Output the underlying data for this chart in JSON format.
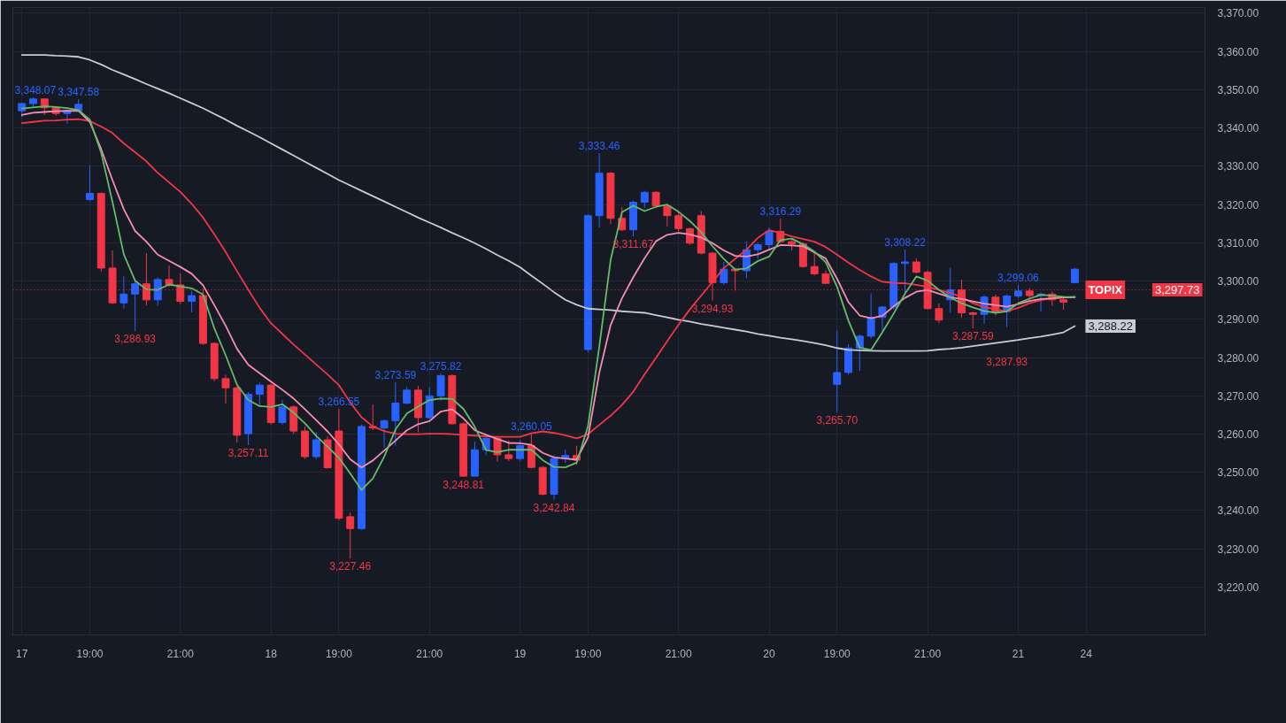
{
  "chart_data": {
    "type": "candlestick",
    "ylim": [
      3207.5,
      3371.5
    ],
    "grid": true,
    "categories": [
      "17",
      null,
      null,
      null,
      null,
      null,
      "19:00",
      null,
      null,
      null,
      null,
      null,
      null,
      null,
      "21:00",
      null,
      null,
      null,
      null,
      null,
      null,
      null,
      "18",
      null,
      null,
      null,
      null,
      null,
      "19:00",
      null,
      null,
      null,
      null,
      null,
      null,
      null,
      "21:00",
      null,
      null,
      null,
      null,
      null,
      null,
      null,
      "19",
      null,
      null,
      null,
      null,
      null,
      "19:00",
      null,
      null,
      null,
      null,
      null,
      null,
      null,
      "21:00",
      null,
      null,
      null,
      null,
      null,
      null,
      null,
      "20",
      null,
      null,
      null,
      null,
      null,
      "19:00",
      null,
      null,
      null,
      null,
      null,
      null,
      null,
      "21:00",
      null,
      null,
      null,
      null,
      null,
      null,
      null,
      "21",
      null,
      null,
      null,
      null,
      null,
      "24",
      null,
      null,
      null,
      null,
      null,
      null,
      null,
      null,
      null,
      null
    ],
    "yticks": [
      {
        "value": 3220,
        "label": "3,220.00"
      },
      {
        "value": 3230,
        "label": "3,230.00"
      },
      {
        "value": 3240,
        "label": "3,240.00"
      },
      {
        "value": 3250,
        "label": "3,250.00"
      },
      {
        "value": 3260,
        "label": "3,260.00"
      },
      {
        "value": 3270,
        "label": "3,270.00"
      },
      {
        "value": 3280,
        "label": "3,280.00"
      },
      {
        "value": 3290,
        "label": "3,290.00"
      },
      {
        "value": 3300,
        "label": "3,300.00"
      },
      {
        "value": 3310,
        "label": "3,310.00"
      },
      {
        "value": 3320,
        "label": "3,320.00"
      },
      {
        "value": 3330,
        "label": "3,330.00"
      },
      {
        "value": 3340,
        "label": "3,340.00"
      },
      {
        "value": 3350,
        "label": "3,350.00"
      },
      {
        "value": 3360,
        "label": "3,360.00"
      },
      {
        "value": 3370,
        "label": "3,370.00"
      }
    ],
    "series": [
      {
        "type": "line",
        "color": "#c9ccd4",
        "values": [
          3359.1,
          3359.1,
          3359.1,
          3358.9,
          3358.8,
          3358.6,
          3357.8,
          3356.6,
          3355.2,
          3354.0,
          3352.8,
          3351.5,
          3350.3,
          3349.1,
          3347.8,
          3346.5,
          3345.2,
          3343.7,
          3342.2,
          3340.6,
          3339.1,
          3337.6,
          3336.0,
          3334.4,
          3332.8,
          3331.2,
          3329.6,
          3328.0,
          3326.4,
          3325.0,
          3323.6,
          3322.2,
          3320.8,
          3319.4,
          3318.0,
          3316.6,
          3315.3,
          3314.0,
          3312.6,
          3311.3,
          3309.9,
          3308.4,
          3306.8,
          3305.3,
          3303.6,
          3301.4,
          3299.3,
          3297.1,
          3295.1,
          3293.8,
          3292.8,
          3292.6,
          3292.4,
          3292.1,
          3291.9,
          3291.7,
          3291.1,
          3290.5,
          3289.9,
          3289.4,
          3288.8,
          3288.3,
          3287.8,
          3287.3,
          3286.8,
          3286.2,
          3285.7,
          3285.2,
          3284.8,
          3284.3,
          3283.8,
          3283.2,
          3282.5,
          3282.0,
          3281.9,
          3281.8,
          3281.7,
          3281.7,
          3281.7,
          3281.7,
          3281.8,
          3282.1,
          3282.3,
          3282.6,
          3283.0,
          3283.4,
          3283.8,
          3284.2,
          3284.6,
          3285.1,
          3285.5,
          3286.0,
          3286.6,
          3288.22,
          null,
          null,
          null,
          null,
          null,
          null,
          null,
          null,
          null,
          null,
          null
        ],
        "value_labels": [
          null,
          null,
          null,
          null,
          null,
          null,
          null,
          null,
          null,
          null,
          null,
          null,
          null,
          null,
          null,
          null,
          null,
          null,
          null,
          null,
          null,
          null,
          null,
          null,
          null,
          null,
          null,
          null,
          null,
          null,
          null,
          null,
          null,
          null,
          null,
          null,
          null,
          null,
          null,
          null,
          null,
          null,
          null,
          null,
          null,
          null,
          null,
          null,
          null,
          null,
          null,
          null,
          null,
          null,
          null,
          null,
          null,
          null,
          null,
          null,
          null,
          null,
          null,
          null,
          null,
          null,
          null,
          null,
          null,
          null,
          null,
          null,
          null,
          null,
          null,
          null,
          null,
          null,
          null,
          null,
          null,
          null,
          null,
          null,
          null,
          null,
          null,
          null,
          null,
          null,
          null,
          null,
          null,
          "3,288.22",
          null,
          null,
          null,
          null,
          null,
          null,
          null,
          null,
          null,
          null,
          null
        ]
      },
      {
        "type": "line",
        "color": "#f23645",
        "values": [
          3341.3,
          3341.6,
          3341.9,
          3342.0,
          3342.2,
          3342.3,
          3341.8,
          3340.4,
          3338.7,
          3336.0,
          3333.7,
          3331.3,
          3328.3,
          3325.8,
          3323.3,
          3320.2,
          3316.6,
          3312.2,
          3307.6,
          3302.6,
          3297.7,
          3293.0,
          3289.0,
          3286.2,
          3283.4,
          3280.8,
          3278.2,
          3275.6,
          3272.8,
          3268.3,
          3264.4,
          3262.0,
          3260.8,
          3260.1,
          3260.0,
          3260.0,
          3260.1,
          3260.1,
          3260.0,
          3259.8,
          3259.6,
          3259.4,
          3259.3,
          3259.3,
          3259.3,
          3260.2,
          3260.7,
          3260.3,
          3259.7,
          3258.9,
          3260.0,
          3262.4,
          3264.8,
          3267.6,
          3271.1,
          3275.6,
          3279.9,
          3284.3,
          3288.6,
          3292.6,
          3296.2,
          3299.8,
          3303.4,
          3305.8,
          3308.2,
          3311.3,
          3313.3,
          3312.6,
          3311.7,
          3311.0,
          3310.3,
          3308.9,
          3306.9,
          3304.8,
          3302.9,
          3301.2,
          3299.8,
          3299.5,
          3299.4,
          3299.0,
          3298.5,
          3297.7,
          3296.9,
          3295.9,
          3294.2,
          3293.2,
          3292.6,
          3292.1,
          3293.0,
          3294.2,
          3295.0,
          3295.5,
          3295.7,
          3295.8,
          null,
          null,
          null,
          null,
          null,
          null,
          null,
          null,
          null,
          null,
          null
        ]
      },
      {
        "type": "line",
        "color": "#f48fb1",
        "values": [
          3343.4,
          3344.0,
          3344.2,
          3344.4,
          3344.5,
          3344.5,
          3341.6,
          3334.5,
          3326.4,
          3318.8,
          3313.1,
          3310.3,
          3306.9,
          3305.3,
          3303.7,
          3301.9,
          3298.9,
          3293.7,
          3288.3,
          3282.3,
          3278.1,
          3275.9,
          3273.7,
          3271.6,
          3269.3,
          3266.5,
          3263.6,
          3260.7,
          3257.3,
          3253.4,
          3251.3,
          3253.1,
          3255.7,
          3258.3,
          3261.0,
          3262.6,
          3263.4,
          3265.9,
          3266.5,
          3264.1,
          3261.0,
          3259.8,
          3258.7,
          3257.7,
          3257.6,
          3257.2,
          3255.1,
          3253.9,
          3253.6,
          3253.3,
          3259.1,
          3276.0,
          3288.5,
          3295.5,
          3301.0,
          3306.0,
          3310.4,
          3312.1,
          3312.6,
          3312.2,
          3311.4,
          3309.9,
          3308.0,
          3306.6,
          3306.4,
          3307.0,
          3308.2,
          3309.4,
          3309.3,
          3309.1,
          3307.5,
          3305.9,
          3300.6,
          3294.5,
          3291.0,
          3290.3,
          3290.9,
          3293.4,
          3295.6,
          3297.2,
          3297.7,
          3296.7,
          3295.8,
          3295.3,
          3294.7,
          3294.1,
          3293.7,
          3293.3,
          3294.0,
          3294.8,
          3295.3,
          3295.5,
          3295.7,
          3295.8,
          null,
          null,
          null,
          null,
          null,
          null,
          null,
          null,
          null,
          null,
          null
        ]
      },
      {
        "type": "line",
        "color": "#66bb6a",
        "values": [
          3345.1,
          3345.4,
          3345.7,
          3345.5,
          3345.2,
          3344.7,
          3342.2,
          3333.6,
          3320.7,
          3307.0,
          3300.1,
          3297.8,
          3297.7,
          3299.1,
          3298.6,
          3298.1,
          3296.5,
          3287.6,
          3280.6,
          3272.9,
          3268.9,
          3267.3,
          3267.1,
          3267.8,
          3265.6,
          3262.8,
          3259.5,
          3256.7,
          3253.8,
          3249.7,
          3245.4,
          3248.4,
          3254.1,
          3261.2,
          3265.4,
          3267.2,
          3268.9,
          3269.3,
          3269.2,
          3266.6,
          3261.9,
          3255.8,
          3255.3,
          3255.9,
          3255.9,
          3255.9,
          3253.2,
          3251.4,
          3251.3,
          3252.5,
          3262.0,
          3282.9,
          3305.5,
          3318.0,
          3319.7,
          3318.3,
          3319.4,
          3320.0,
          3318.1,
          3315.7,
          3312.8,
          3309.1,
          3305.8,
          3303.0,
          3303.3,
          3305.2,
          3306.4,
          3310.7,
          3311.1,
          3309.6,
          3307.7,
          3304.9,
          3298.5,
          3289.7,
          3282.6,
          3282.0,
          3286.6,
          3291.5,
          3296.7,
          3301.2,
          3300.1,
          3297.7,
          3295.7,
          3294.2,
          3293.1,
          3292.2,
          3291.7,
          3292.1,
          3294.2,
          3295.4,
          3296.4,
          3296.2,
          3295.9,
          3295.8,
          null,
          null,
          null,
          null,
          null,
          null,
          null,
          null,
          null,
          null,
          null
        ]
      },
      {
        "name": "TOPIX",
        "ohlc": [
          [
            3344.5,
            3346.6,
            3342.9,
            3346.4
          ],
          [
            3346.4,
            3348.07,
            3345.2,
            3347.6
          ],
          [
            3347.6,
            3347.8,
            3343.4,
            3345.3
          ],
          [
            3345.3,
            3345.6,
            3343.2,
            3343.8
          ],
          [
            3343.8,
            3344.9,
            3341.1,
            3344.5
          ],
          [
            3344.5,
            3347.58,
            3344.2,
            3346.2
          ],
          [
            3321.3,
            3330.2,
            3321.0,
            3322.9
          ],
          [
            3322.9,
            3323.2,
            3302.5,
            3303.4
          ],
          [
            3303.4,
            3308.0,
            3294.0,
            3294.3
          ],
          [
            3294.3,
            3301.2,
            3292.8,
            3296.6
          ],
          [
            3296.6,
            3299.8,
            3286.93,
            3299.3
          ],
          [
            3299.3,
            3307.3,
            3293.6,
            3295.1
          ],
          [
            3295.1,
            3301.0,
            3293.5,
            3300.4
          ],
          [
            3300.4,
            3304.1,
            3298.5,
            3299.0
          ],
          [
            3299.0,
            3302.0,
            3294.0,
            3294.7
          ],
          [
            3294.7,
            3297.5,
            3291.8,
            3296.2
          ],
          [
            3296.2,
            3298.0,
            3283.3,
            3283.7
          ],
          [
            3283.7,
            3284.0,
            3273.8,
            3274.5
          ],
          [
            3274.5,
            3275.5,
            3268.0,
            3272.1
          ],
          [
            3272.1,
            3272.5,
            3257.8,
            3259.7
          ],
          [
            3260.1,
            3271.0,
            3257.11,
            3270.4
          ],
          [
            3270.4,
            3273.4,
            3267.5,
            3272.8
          ],
          [
            3272.8,
            3273.2,
            3262.5,
            3263.0
          ],
          [
            3263.0,
            3269.0,
            3262.5,
            3267.1
          ],
          [
            3267.1,
            3267.5,
            3260.0,
            3260.8
          ],
          [
            3260.8,
            3262.0,
            3253.5,
            3254.1
          ],
          [
            3254.1,
            3260.5,
            3253.5,
            3258.5
          ],
          [
            3258.5,
            3259.5,
            3251.0,
            3251.2
          ],
          [
            3260.8,
            3266.55,
            3237.5,
            3238.0
          ],
          [
            3238.4,
            3239.5,
            3227.46,
            3235.3
          ],
          [
            3235.3,
            3262.5,
            3235.0,
            3262.0
          ],
          [
            3262.0,
            3267.7,
            3261.0,
            3261.6
          ],
          [
            3261.6,
            3263.8,
            3256.5,
            3263.5
          ],
          [
            3263.5,
            3273.59,
            3257.0,
            3268.1
          ],
          [
            3268.1,
            3272.3,
            3267.8,
            3271.5
          ],
          [
            3271.5,
            3272.6,
            3260.5,
            3264.3
          ],
          [
            3264.3,
            3272.3,
            3263.8,
            3270.0
          ],
          [
            3270.0,
            3275.82,
            3268.8,
            3275.3
          ],
          [
            3275.3,
            3275.6,
            3262.5,
            3262.7
          ],
          [
            3262.7,
            3263.1,
            3248.81,
            3249.0
          ],
          [
            3249.0,
            3258.0,
            3248.9,
            3255.9
          ],
          [
            3255.9,
            3259.5,
            3254.5,
            3258.9
          ],
          [
            3258.9,
            3259.2,
            3252.8,
            3254.6
          ],
          [
            3254.6,
            3258.3,
            3252.9,
            3253.6
          ],
          [
            3253.6,
            3258.5,
            3253.0,
            3257.0
          ],
          [
            3257.0,
            3260.05,
            3251.0,
            3251.3
          ],
          [
            3251.3,
            3251.6,
            3244.0,
            3244.3
          ],
          [
            3244.3,
            3254.5,
            3242.84,
            3253.6
          ],
          [
            3253.6,
            3256.0,
            3252.5,
            3254.4
          ],
          [
            3254.4,
            3257.0,
            3252.0,
            3253.2
          ],
          [
            3282.1,
            3317.5,
            3281.4,
            3317.1
          ],
          [
            3317.1,
            3333.46,
            3314.0,
            3328.2
          ],
          [
            3328.2,
            3328.5,
            3314.9,
            3316.4
          ],
          [
            3316.4,
            3319.3,
            3313.0,
            3313.4
          ],
          [
            3313.4,
            3321.0,
            3311.67,
            3320.6
          ],
          [
            3320.6,
            3323.6,
            3319.0,
            3323.2
          ],
          [
            3323.2,
            3323.5,
            3319.2,
            3319.6
          ],
          [
            3319.6,
            3320.0,
            3314.3,
            3317.1
          ],
          [
            3317.1,
            3318.0,
            3313.0,
            3313.7
          ],
          [
            3313.7,
            3314.0,
            3309.5,
            3309.9
          ],
          [
            3317.1,
            3318.3,
            3307.0,
            3307.3
          ],
          [
            3307.3,
            3307.6,
            3294.93,
            3299.6
          ],
          [
            3299.6,
            3305.0,
            3299.0,
            3303.1
          ],
          [
            3303.1,
            3303.5,
            3297.5,
            3302.7
          ],
          [
            3302.7,
            3310.3,
            3300.8,
            3308.2
          ],
          [
            3308.2,
            3310.0,
            3305.8,
            3309.5
          ],
          [
            3309.5,
            3314.0,
            3308.0,
            3313.0
          ],
          [
            3313.0,
            3316.29,
            3310.0,
            3310.3
          ],
          [
            3310.3,
            3311.0,
            3308.0,
            3309.7
          ],
          [
            3309.7,
            3310.2,
            3303.5,
            3303.8
          ],
          [
            3303.8,
            3307.5,
            3301.5,
            3301.9
          ],
          [
            3301.9,
            3302.8,
            3299.4,
            3299.4
          ],
          [
            3273.0,
            3287.1,
            3265.7,
            3276.1
          ],
          [
            3276.1,
            3283.5,
            3275.5,
            3282.5
          ],
          [
            3282.5,
            3286.0,
            3276.5,
            3285.6
          ],
          [
            3285.6,
            3296.8,
            3285.0,
            3290.5
          ],
          [
            3290.5,
            3293.5,
            3286.8,
            3293.2
          ],
          [
            3293.2,
            3305.0,
            3292.5,
            3304.6
          ],
          [
            3304.6,
            3308.22,
            3296.5,
            3305.0
          ],
          [
            3305.0,
            3306.0,
            3302.0,
            3302.3
          ],
          [
            3302.3,
            3302.8,
            3292.5,
            3292.8
          ],
          [
            3292.8,
            3294.2,
            3289.0,
            3289.8
          ],
          [
            3295.1,
            3303.5,
            3291.7,
            3297.7
          ],
          [
            3297.7,
            3300.4,
            3290.5,
            3291.7
          ],
          [
            3291.7,
            3292.0,
            3287.59,
            3291.3
          ],
          [
            3291.3,
            3296.3,
            3288.8,
            3295.8
          ],
          [
            3295.8,
            3296.5,
            3291.0,
            3292.0
          ],
          [
            3292.0,
            3296.5,
            3287.93,
            3296.1
          ],
          [
            3296.1,
            3299.06,
            3295.5,
            3297.4
          ],
          [
            3297.4,
            3298.2,
            3295.0,
            3296.2
          ],
          [
            3296.2,
            3297.0,
            3292.0,
            3296.6
          ],
          [
            3296.6,
            3297.3,
            3293.5,
            3295.1
          ],
          [
            3295.1,
            3296.0,
            3292.5,
            3294.5
          ],
          [
            3299.6,
            3303.5,
            3299.4,
            3303.1
          ],
          null,
          null,
          null,
          null,
          null,
          null,
          null,
          null,
          null,
          null,
          null
        ],
        "colors": [
          "#2962ff",
          "#2962ff",
          "#f23645",
          "#f23645",
          "#2962ff",
          "#2962ff",
          "#2962ff",
          "#f23645",
          "#f23645",
          "#2962ff",
          "#2962ff",
          "#f23645",
          "#2962ff",
          "#f23645",
          "#f23645",
          "#2962ff",
          "#f23645",
          "#f23645",
          "#f23645",
          "#f23645",
          "#2962ff",
          "#2962ff",
          "#f23645",
          "#2962ff",
          "#f23645",
          "#f23645",
          "#2962ff",
          "#f23645",
          "#f23645",
          "#f23645",
          "#2962ff",
          "#f23645",
          "#2962ff",
          "#2962ff",
          "#2962ff",
          "#f23645",
          "#2962ff",
          "#2962ff",
          "#f23645",
          "#f23645",
          "#2962ff",
          "#2962ff",
          "#f23645",
          "#f23645",
          "#2962ff",
          "#f23645",
          "#f23645",
          "#2962ff",
          "#2962ff",
          "#f23645",
          "#2962ff",
          "#2962ff",
          "#f23645",
          "#f23645",
          "#2962ff",
          "#2962ff",
          "#f23645",
          "#f23645",
          "#f23645",
          "#f23645",
          "#f23645",
          "#f23645",
          "#2962ff",
          "#f23645",
          "#2962ff",
          "#2962ff",
          "#2962ff",
          "#f23645",
          "#f23645",
          "#f23645",
          "#f23645",
          "#f23645",
          "#2962ff",
          "#2962ff",
          "#2962ff",
          "#2962ff",
          "#2962ff",
          "#2962ff",
          "#2962ff",
          "#f23645",
          "#f23645",
          "#f23645",
          "#2962ff",
          "#f23645",
          "#f23645",
          "#2962ff",
          "#f23645",
          "#2962ff",
          "#2962ff",
          "#f23645",
          "#2962ff",
          "#f23645",
          "#f23645",
          "#2962ff",
          null,
          null,
          null,
          null,
          null,
          null,
          null,
          null,
          null,
          null,
          null
        ]
      }
    ],
    "ref_lines": [
      {
        "axis": "y",
        "value": 3297.73,
        "label": "3,297.73",
        "color": "#f23645",
        "line_style": "dotted"
      }
    ],
    "annotations": [
      {
        "text": "3,348.07",
        "y": 3348.07
      },
      {
        "text": "3,347.58",
        "y": 3347.58
      },
      {
        "text": "3,286.93",
        "y": 3286.93
      },
      {
        "text": "3,257.11",
        "y": 3257.11
      },
      {
        "text": "3,266.55",
        "y": 3266.55
      },
      {
        "text": "3,227.46",
        "y": 3227.46
      },
      {
        "text": "3,273.59",
        "y": 3273.59
      },
      {
        "text": "3,275.82",
        "y": 3275.82
      },
      {
        "text": "3,248.81",
        "y": 3248.81
      },
      {
        "text": "3,260.05",
        "y": 3260.05
      },
      {
        "text": "3,242.84",
        "y": 3242.84
      },
      {
        "text": "3,333.46",
        "y": 3333.46
      },
      {
        "text": "3,311.67",
        "y": 3311.67
      },
      {
        "text": "3,294.93",
        "y": 3294.93
      },
      {
        "text": "3,316.29",
        "y": 3316.29
      },
      {
        "text": "3,265.70",
        "y": 3265.7
      },
      {
        "text": "3,308.22",
        "y": 3308.22
      },
      {
        "text": "3,287.59",
        "y": 3287.59
      },
      {
        "text": "3,287.93",
        "y": 3287.93
      },
      {
        "text": "3,299.06",
        "y": 3299.06
      }
    ]
  }
}
